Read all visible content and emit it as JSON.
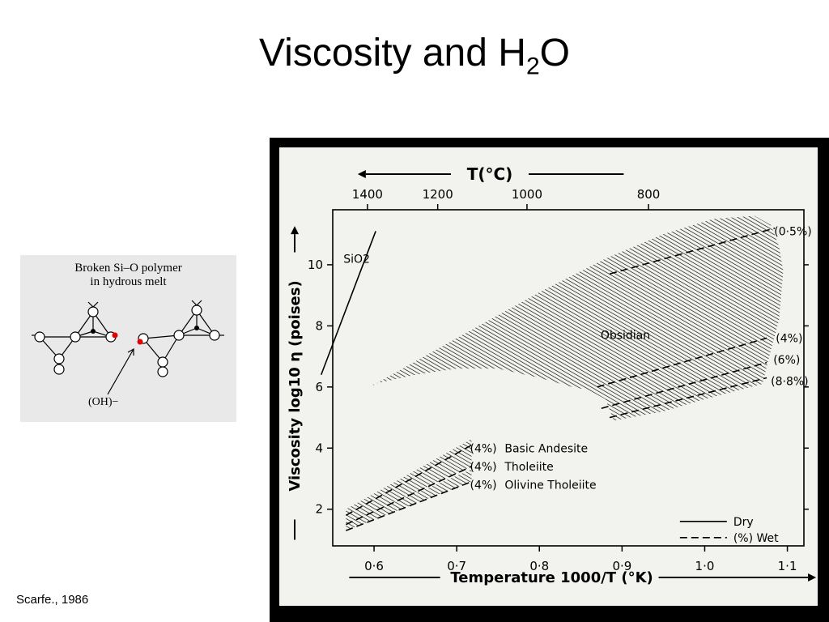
{
  "slide": {
    "title": "Viscosity and H",
    "title_subscript": "2",
    "title_suffix": "O",
    "citation": "Scarfe., 1986"
  },
  "inset": {
    "caption_line1": "Broken Si–O polymer",
    "caption_line2": "in hydrous melt",
    "ion_label": "(OH)−",
    "accent_color": "#e60000"
  },
  "chart_data": {
    "type": "line",
    "title": "",
    "xlabel": "Temperature 1000/T (°K)",
    "ylabel": "Viscosity log10 η (poises)",
    "top_axis_label": "T(°C)",
    "xlim": [
      0.55,
      1.12
    ],
    "ylim": [
      0.8,
      11.8
    ],
    "x_ticks": [
      0.6,
      0.7,
      0.8,
      0.9,
      1.0,
      1.1
    ],
    "x_tick_labels": [
      "0·6",
      "0·7",
      "0·8",
      "0·9",
      "1·0",
      "1·1"
    ],
    "y_ticks": [
      2,
      4,
      6,
      8,
      10
    ],
    "y_tick_labels": [
      "2",
      "4",
      "6",
      "8",
      "10"
    ],
    "top_ticks_x": [
      0.592,
      0.677,
      0.785,
      0.932
    ],
    "top_tick_labels": [
      "1400",
      "1200",
      "1000",
      "800"
    ],
    "grid": false,
    "legend_position": "bottom-right",
    "legend": [
      {
        "label": "Dry",
        "style": "solid"
      },
      {
        "label": "(%) Wet",
        "style": "dashed"
      }
    ],
    "line_color": "#000000",
    "series": [
      {
        "name": "SiO2",
        "style": "solid",
        "x": [
          0.536,
          0.602
        ],
        "y": [
          6.4,
          11.1
        ]
      },
      {
        "name": "Obsidian (0·5%)",
        "style": "dashed",
        "x": [
          0.885,
          1.085
        ],
        "y": [
          9.7,
          11.2
        ]
      },
      {
        "name": "Obsidian (4%)",
        "style": "dashed",
        "x": [
          0.87,
          1.075
        ],
        "y": [
          6.0,
          7.6
        ]
      },
      {
        "name": "Obsidian (6%)",
        "style": "dashed",
        "x": [
          0.875,
          1.075
        ],
        "y": [
          5.3,
          6.8
        ]
      },
      {
        "name": "Obsidian (8·8%)",
        "style": "dashed",
        "x": [
          0.885,
          1.075
        ],
        "y": [
          5.0,
          6.3
        ]
      },
      {
        "name": "Basic Andesite (4%)",
        "style": "dashed",
        "x": [
          0.566,
          0.718
        ],
        "y": [
          1.8,
          4.1
        ]
      },
      {
        "name": "Tholeiite (4%)",
        "style": "dashed",
        "x": [
          0.566,
          0.718
        ],
        "y": [
          1.5,
          3.4
        ]
      },
      {
        "name": "Olivine Tholeiite (4%)",
        "style": "dashed",
        "x": [
          0.566,
          0.718
        ],
        "y": [
          1.3,
          2.9
        ]
      }
    ],
    "regions": [
      {
        "name": "Obsidian",
        "x": [
          0.595,
          0.7,
          0.8,
          0.88,
          0.95,
          1.01,
          1.06,
          1.08,
          1.09,
          1.095,
          1.09,
          1.08,
          1.07,
          1.0,
          0.95,
          0.89,
          0.88,
          0.86,
          0.84,
          0.8,
          0.75,
          0.7,
          0.65,
          0.6,
          0.595
        ],
        "y": [
          6.0,
          7.6,
          9.1,
          10.2,
          11.0,
          11.5,
          11.6,
          11.3,
          10.6,
          9.8,
          8.2,
          7.2,
          6.1,
          5.6,
          5.2,
          4.9,
          5.6,
          5.9,
          6.0,
          6.3,
          6.6,
          6.6,
          6.4,
          6.1,
          6.0
        ]
      },
      {
        "name": "Basic Andesite",
        "x": [
          0.566,
          0.718,
          0.718,
          0.566
        ],
        "y": [
          1.5,
          3.4,
          4.3,
          2.0
        ]
      },
      {
        "name": "Tholeiite",
        "x": [
          0.566,
          0.718,
          0.718,
          0.566
        ],
        "y": [
          1.3,
          2.9,
          3.3,
          1.55
        ]
      }
    ],
    "annotations": [
      {
        "text": "SiO2",
        "x": 0.563,
        "y": 10.2
      },
      {
        "text": "Obsidian",
        "x": 0.874,
        "y": 7.7
      },
      {
        "text": "(0·5%)",
        "x": 1.084,
        "y": 11.1
      },
      {
        "text": "(4%)",
        "x": 1.086,
        "y": 7.6
      },
      {
        "text": "(6%)",
        "x": 1.083,
        "y": 6.9
      },
      {
        "text": "(8·8%)",
        "x": 1.08,
        "y": 6.2
      },
      {
        "text": "(4%)",
        "x": 0.716,
        "y": 4.0
      },
      {
        "text": "Basic Andesite",
        "x": 0.758,
        "y": 4.0
      },
      {
        "text": "(4%)",
        "x": 0.716,
        "y": 3.4
      },
      {
        "text": "Tholeiite",
        "x": 0.758,
        "y": 3.4
      },
      {
        "text": "(4%)",
        "x": 0.716,
        "y": 2.8
      },
      {
        "text": "Olivine Tholeiite",
        "x": 0.758,
        "y": 2.8
      }
    ]
  }
}
